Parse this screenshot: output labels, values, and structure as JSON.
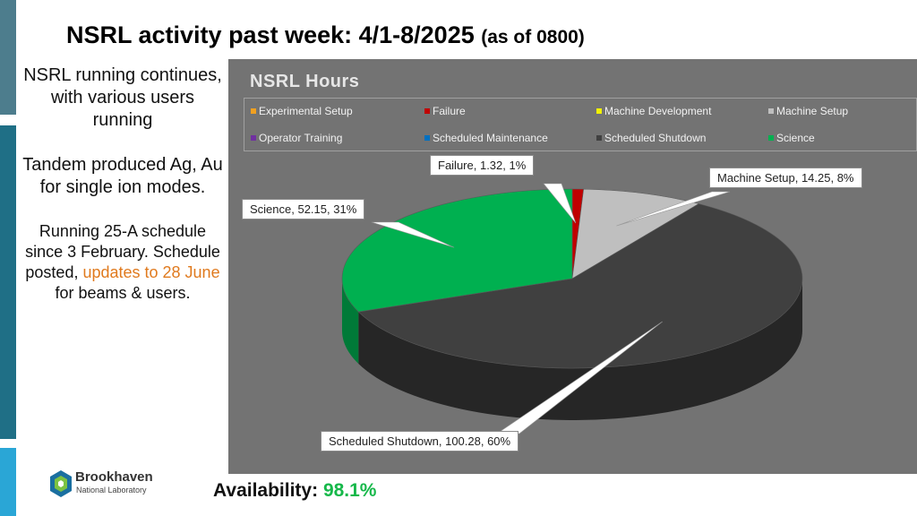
{
  "header": {
    "title": "NSRL activity past week: 4/1-8/2025",
    "subtitle": "(as of 0800)"
  },
  "sidebar": {
    "p1": "NSRL running continues, with various users running",
    "p2": "Tandem produced Ag, Au for single ion modes.",
    "p3_a": "Running 25-A schedule since 3 February. Schedule posted, ",
    "p3_highlight": "updates to 28 June",
    "p3_b": " for beams & users."
  },
  "footer": {
    "availability_label": "Availability:",
    "availability_value": "98.1%",
    "logo_name": "Brookhaven",
    "logo_sub": "National Laboratory"
  },
  "colors": {
    "experimental_setup": "#f0a020",
    "failure": "#c00000",
    "machine_development": "#f2f200",
    "machine_setup": "#bfbfbf",
    "operator_training": "#7030a0",
    "scheduled_maintenance": "#0070c0",
    "scheduled_shutdown": "#404040",
    "science": "#00b050",
    "availability": "#16b84a",
    "highlight": "#e07a1e"
  },
  "chart_data": {
    "type": "pie",
    "title": "NSRL Hours",
    "legend_position": "top",
    "legend": [
      "Experimental Setup",
      "Failure",
      "Machine Development",
      "Machine Setup",
      "Operator Training",
      "Scheduled Maintenance",
      "Scheduled Shutdown",
      "Science"
    ],
    "slices": [
      {
        "name": "Failure",
        "value": 1.32,
        "percent": 1,
        "label": "Failure, 1.32, 1%"
      },
      {
        "name": "Machine Setup",
        "value": 14.25,
        "percent": 8,
        "label": "Machine Setup, 14.25, 8%"
      },
      {
        "name": "Scheduled Shutdown",
        "value": 100.28,
        "percent": 60,
        "label": "Scheduled Shutdown, 100.28, 60%"
      },
      {
        "name": "Science",
        "value": 52.15,
        "percent": 31,
        "label": "Science, 52.15, 31%"
      }
    ]
  }
}
